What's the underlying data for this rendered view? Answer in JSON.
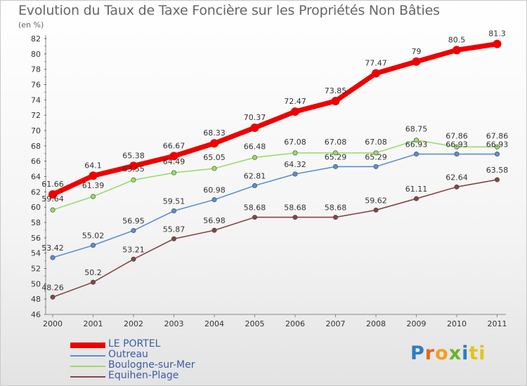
{
  "header": {
    "title": "Evolution du Taux de Taxe Foncière sur les Propriétés Non Bâties",
    "subtitle": "(en %)"
  },
  "logo": {
    "text": "Proxiti",
    "letters": [
      "P",
      "r",
      "o",
      "x",
      "i",
      "ti"
    ]
  },
  "chart_data": {
    "type": "line",
    "x": [
      "2000",
      "2001",
      "2002",
      "2003",
      "2004",
      "2005",
      "2006",
      "2007",
      "2008",
      "2009",
      "2010",
      "2011"
    ],
    "ylim": [
      46,
      82
    ],
    "yticks": [
      46,
      48,
      50,
      52,
      54,
      56,
      58,
      60,
      62,
      64,
      66,
      68,
      70,
      72,
      74,
      76,
      78,
      80,
      82
    ],
    "grid": false,
    "legend_position": "bottom-left",
    "series": [
      {
        "name": "LE PORTEL",
        "color": "#ee0000",
        "values": [
          61.66,
          64.1,
          65.38,
          66.67,
          68.33,
          70.37,
          72.47,
          73.85,
          77.47,
          79,
          80.5,
          81.3
        ],
        "labels": [
          "61.66",
          "64.1",
          "65.38",
          "66.67",
          "68.33",
          "70.37",
          "72.47",
          "73.85",
          "77.47",
          "79",
          "80.5",
          "81.3"
        ]
      },
      {
        "name": "Outreau",
        "color": "#5b8fcf",
        "values": [
          53.42,
          55.02,
          56.95,
          59.51,
          60.98,
          62.81,
          64.32,
          65.29,
          65.29,
          66.93,
          66.93,
          66.93
        ],
        "labels": [
          "53.42",
          "55.02",
          "56.95",
          "59.51",
          "60.98",
          "62.81",
          "64.32",
          "65.29",
          "65.29",
          "66.93",
          "66.93",
          "66.93"
        ]
      },
      {
        "name": "Boulogne-sur-Mer",
        "color": "#99dd66",
        "values": [
          59.64,
          61.39,
          63.55,
          64.49,
          65.05,
          66.48,
          67.08,
          67.08,
          67.08,
          68.75,
          67.86,
          67.86
        ],
        "labels": [
          "59.64",
          "61.39",
          "63.55",
          "64.49",
          "65.05",
          "66.48",
          "67.08",
          "67.08",
          "67.08",
          "68.75",
          "67.86",
          "67.86"
        ]
      },
      {
        "name": "Equihen-Plage",
        "color": "#884444",
        "values": [
          48.26,
          50.2,
          53.21,
          55.87,
          56.98,
          58.68,
          58.68,
          58.68,
          59.62,
          61.11,
          62.64,
          63.58
        ],
        "labels": [
          "48.26",
          "50.2",
          "53.21",
          "55.87",
          "56.98",
          "58.68",
          "58.68",
          "58.68",
          "59.62",
          "61.11",
          "62.64",
          "63.58"
        ]
      }
    ]
  }
}
